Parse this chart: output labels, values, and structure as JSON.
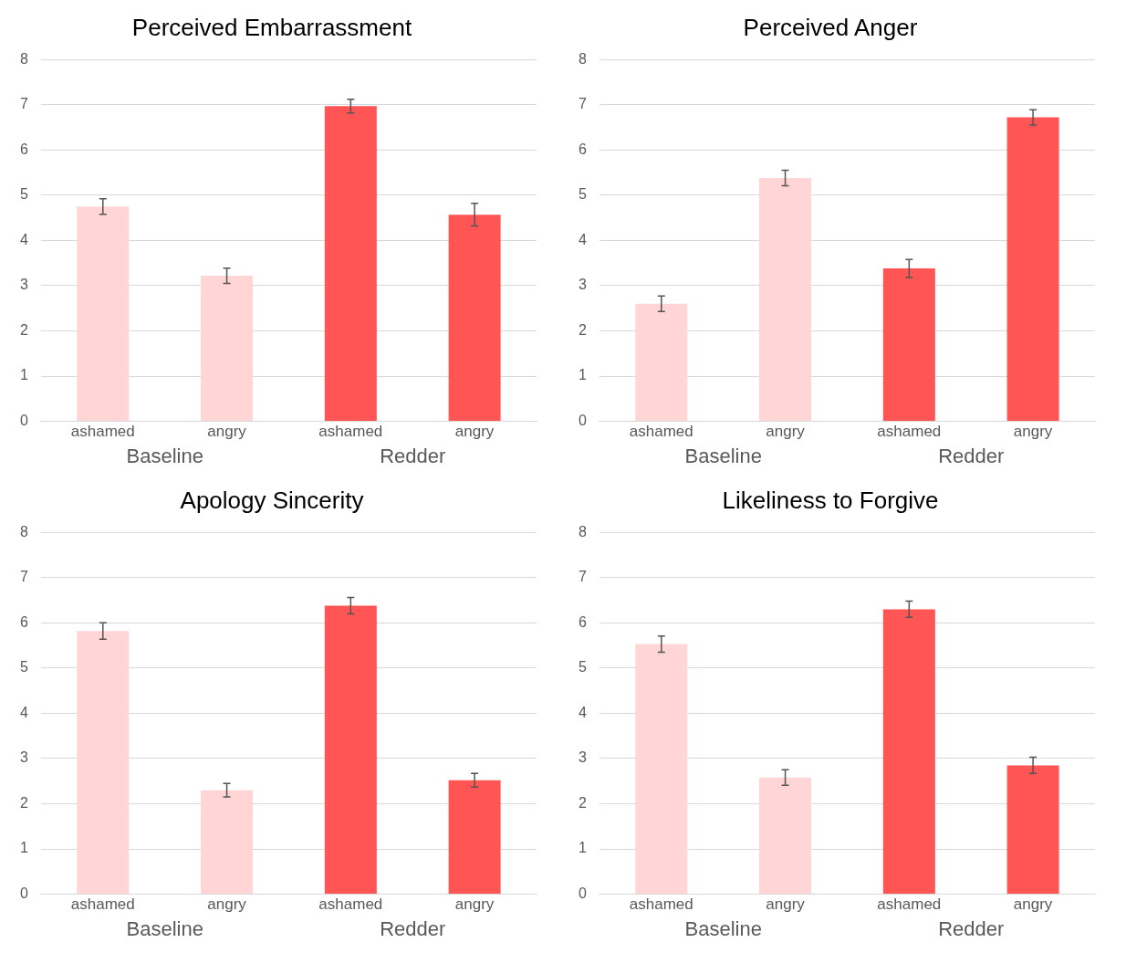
{
  "chart_data": [
    {
      "type": "bar",
      "title": "Perceived Embarrassment",
      "categories": [
        "ashamed",
        "angry",
        "ashamed",
        "angry"
      ],
      "ylim": [
        0,
        8
      ],
      "yticks": [
        0,
        1,
        2,
        3,
        4,
        5,
        6,
        7,
        8
      ],
      "grid": "y",
      "legend": false,
      "series": [
        {
          "name": "Baseline",
          "color": "#ffd5d5",
          "values": [
            4.75,
            3.22,
            null,
            null
          ],
          "errors": [
            0.17,
            0.17,
            null,
            null
          ]
        },
        {
          "name": "Redder",
          "color": "#ff5555",
          "values": [
            null,
            null,
            6.97,
            4.57
          ],
          "errors": [
            null,
            null,
            0.15,
            0.25
          ]
        }
      ]
    },
    {
      "type": "bar",
      "title": "Perceived Anger",
      "categories": [
        "ashamed",
        "angry",
        "ashamed",
        "angry"
      ],
      "ylim": [
        0,
        8
      ],
      "yticks": [
        0,
        1,
        2,
        3,
        4,
        5,
        6,
        7,
        8
      ],
      "grid": "y",
      "legend": false,
      "series": [
        {
          "name": "Baseline",
          "color": "#ffd5d5",
          "values": [
            2.6,
            5.38,
            null,
            null
          ],
          "errors": [
            0.17,
            0.17,
            null,
            null
          ]
        },
        {
          "name": "Redder",
          "color": "#ff5555",
          "values": [
            null,
            null,
            3.38,
            6.72
          ],
          "errors": [
            null,
            null,
            0.2,
            0.17
          ]
        }
      ]
    },
    {
      "type": "bar",
      "title": "Apology Sincerity",
      "categories": [
        "ashamed",
        "angry",
        "ashamed",
        "angry"
      ],
      "ylim": [
        0,
        8
      ],
      "yticks": [
        0,
        1,
        2,
        3,
        4,
        5,
        6,
        7,
        8
      ],
      "grid": "y",
      "legend": false,
      "series": [
        {
          "name": "Baseline",
          "color": "#ffd5d5",
          "values": [
            5.82,
            2.3,
            null,
            null
          ],
          "errors": [
            0.18,
            0.15,
            null,
            null
          ]
        },
        {
          "name": "Redder",
          "color": "#ff5555",
          "values": [
            null,
            null,
            6.38,
            2.52
          ],
          "errors": [
            null,
            null,
            0.18,
            0.15
          ]
        }
      ]
    },
    {
      "type": "bar",
      "title": "Likeliness to Forgive",
      "categories": [
        "ashamed",
        "angry",
        "ashamed",
        "angry"
      ],
      "ylim": [
        0,
        8
      ],
      "yticks": [
        0,
        1,
        2,
        3,
        4,
        5,
        6,
        7,
        8
      ],
      "grid": "y",
      "legend": false,
      "series": [
        {
          "name": "Baseline",
          "color": "#ffd5d5",
          "values": [
            5.53,
            2.58,
            null,
            null
          ],
          "errors": [
            0.18,
            0.17,
            null,
            null
          ]
        },
        {
          "name": "Redder",
          "color": "#ff5555",
          "values": [
            null,
            null,
            6.3,
            2.85
          ],
          "errors": [
            null,
            null,
            0.18,
            0.18
          ]
        }
      ]
    }
  ]
}
